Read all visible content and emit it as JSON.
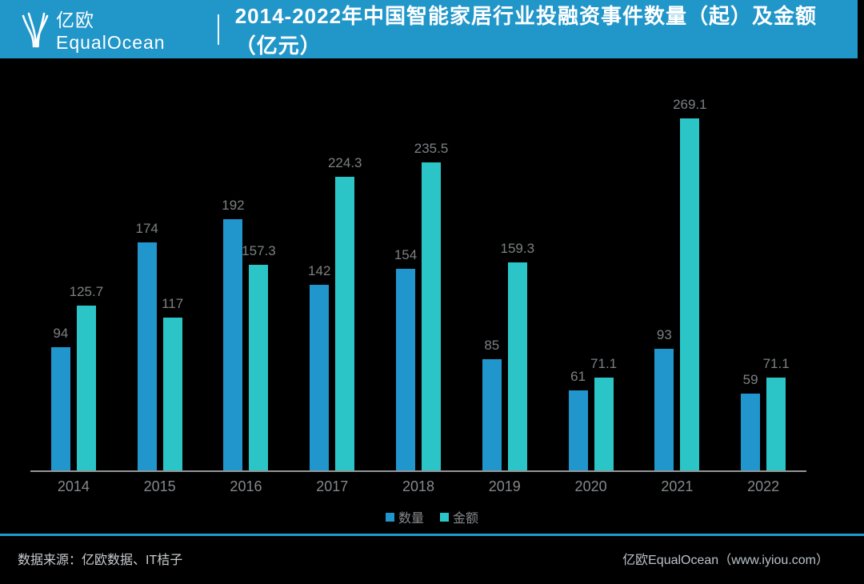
{
  "header": {
    "logo_text": "亿欧 EqualOcean",
    "title": "2014-2022年中国智能家居行业投融资事件数量（起）及金额（亿元）",
    "band_color": "#2196C9"
  },
  "chart_data": {
    "type": "bar",
    "title": "2014-2022年中国智能家居行业投融资事件数量（起）及金额（亿元）",
    "categories": [
      "2014",
      "2015",
      "2016",
      "2017",
      "2018",
      "2019",
      "2020",
      "2021",
      "2022"
    ],
    "series": [
      {
        "name": "数量",
        "key": "count",
        "color": "#2196CC",
        "values": [
          94,
          174,
          192,
          142,
          154,
          85,
          61,
          93,
          59
        ]
      },
      {
        "name": "金额",
        "key": "amount",
        "color": "#2BC5C7",
        "values": [
          125.7,
          117,
          157.3,
          224.3,
          235.5,
          159.3,
          71.1,
          269.1,
          71.1
        ]
      }
    ],
    "xlabel": "",
    "ylabel": "",
    "ylim": [
      0,
      280
    ],
    "grid": false,
    "legend_position": "bottom",
    "background": "#000000",
    "value_labels": true
  },
  "legend": {
    "items": [
      {
        "label": "数量",
        "color": "#2196CC"
      },
      {
        "label": "金额",
        "color": "#2BC5C7"
      }
    ]
  },
  "footer": {
    "source": "数据来源：亿欧数据、IT桔子",
    "brand": "亿欧EqualOcean（www.iyiou.com）",
    "divider_color": "#1E9ACF"
  }
}
